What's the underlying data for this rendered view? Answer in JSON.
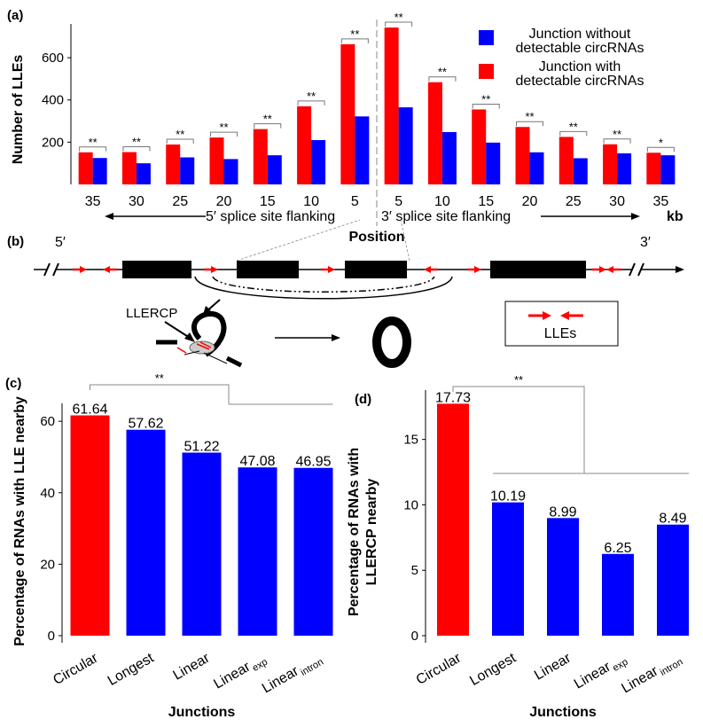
{
  "colors": {
    "red": "#ff0000",
    "blue": "#0000ff",
    "black": "#000000",
    "grey": "#999999"
  },
  "panel_labels": {
    "a": "(a)",
    "b": "(b)",
    "c": "(c)",
    "d": "(d)"
  },
  "chart_data": [
    {
      "type": "bar",
      "panel": "(a)",
      "ylabel": "Number of LLEs",
      "xlabel": "Position",
      "unit_label": "kb",
      "ylim": [
        0,
        760
      ],
      "yticks": [
        200,
        400,
        600
      ],
      "groups": [
        "5′ splice site flanking",
        "3′ splice site flanking"
      ],
      "categories": [
        "35",
        "30",
        "25",
        "20",
        "15",
        "10",
        "5",
        "5",
        "10",
        "15",
        "20",
        "25",
        "30",
        "35"
      ],
      "series": [
        {
          "name": "Junction with detectable circRNAs",
          "color": "#ff0000",
          "values": [
            152,
            153,
            189,
            222,
            262,
            370,
            664,
            743,
            484,
            355,
            272,
            225,
            190,
            150
          ]
        },
        {
          "name": "Junction without detectable circRNAs",
          "color": "#0000ff",
          "values": [
            125,
            100,
            128,
            120,
            138,
            210,
            322,
            365,
            248,
            198,
            152,
            124,
            147,
            138
          ]
        }
      ],
      "significance": [
        "**",
        "**",
        "**",
        "**",
        "**",
        "**",
        "**",
        "**",
        "**",
        "**",
        "**",
        "**",
        "**",
        "*"
      ],
      "legend": [
        "Junction without detectable circRNAs",
        "Junction with detectable circRNAs"
      ],
      "legend_position": "top-right"
    },
    {
      "type": "bar",
      "panel": "(c)",
      "ylabel": "Percentage of RNAs with LLE nearby",
      "xlabel": "Junctions",
      "ylim": [
        0,
        64
      ],
      "yticks": [
        0,
        20,
        40,
        60
      ],
      "categories": [
        {
          "main": "Circular",
          "sub": ""
        },
        {
          "main": "Longest",
          "sub": ""
        },
        {
          "main": "Linear",
          "sub": ""
        },
        {
          "main": "Linear",
          "sub": "exp"
        },
        {
          "main": "Linear",
          "sub": "intron"
        }
      ],
      "values": [
        61.64,
        57.62,
        51.22,
        47.08,
        46.95
      ],
      "labels": [
        "61.64",
        "57.62",
        "51.22",
        "47.08",
        "46.95"
      ],
      "bar_colors": [
        "#ff0000",
        "#0000ff",
        "#0000ff",
        "#0000ff",
        "#0000ff"
      ],
      "significance": "**"
    },
    {
      "type": "bar",
      "panel": "(d)",
      "ylabel_lines": [
        "Percentage of RNAs with",
        "LLERCP nearby"
      ],
      "xlabel": "Junctions",
      "ylim": [
        0,
        18.5
      ],
      "yticks": [
        0,
        5,
        10,
        15
      ],
      "categories": [
        {
          "main": "Circular",
          "sub": ""
        },
        {
          "main": "Longest",
          "sub": ""
        },
        {
          "main": "Linear",
          "sub": ""
        },
        {
          "main": "Linear",
          "sub": "exp"
        },
        {
          "main": "Linear",
          "sub": "intron"
        }
      ],
      "values": [
        17.73,
        10.19,
        8.99,
        6.25,
        8.49
      ],
      "labels": [
        "17.73",
        "10.19",
        "8.99",
        "6.25",
        "8.49"
      ],
      "bar_colors": [
        "#ff0000",
        "#0000ff",
        "#0000ff",
        "#0000ff",
        "#0000ff"
      ],
      "significance": "**"
    }
  ],
  "diagram": {
    "five_prime": "5′",
    "three_prime": "3′",
    "llercp_label": "LLERCP",
    "legend_label": "LLEs"
  }
}
